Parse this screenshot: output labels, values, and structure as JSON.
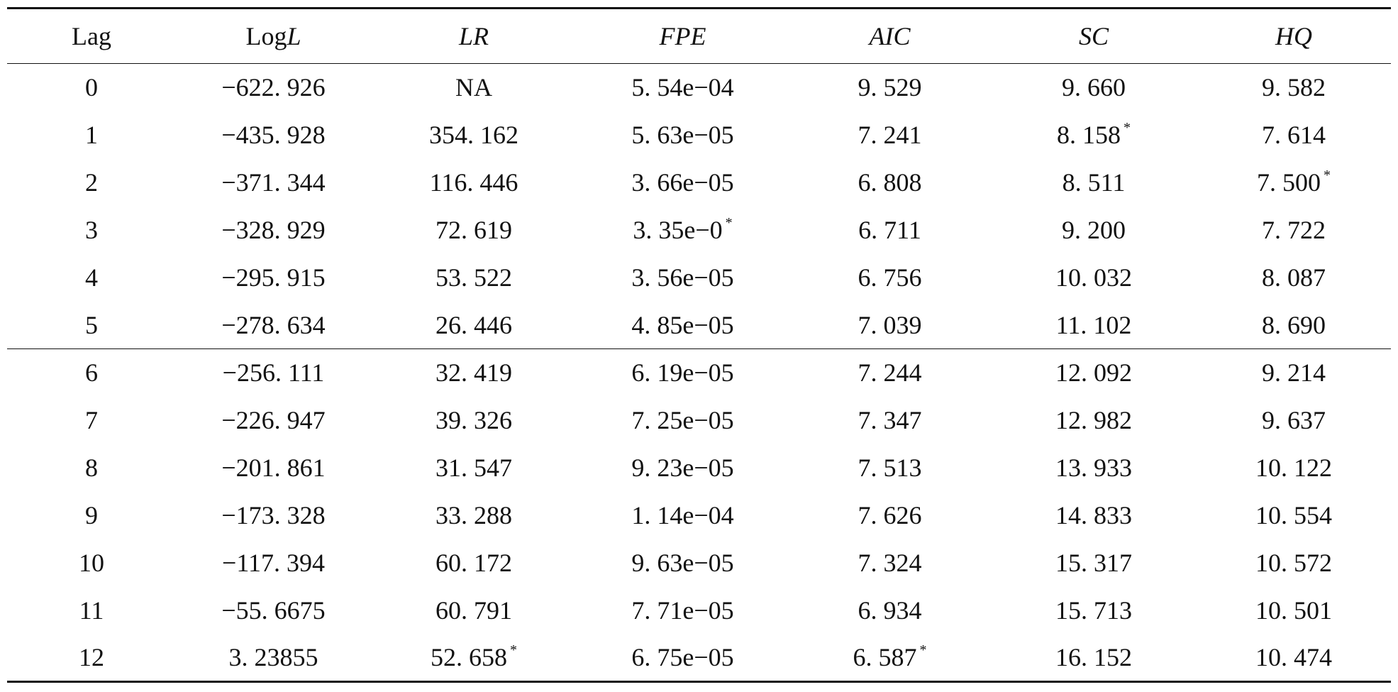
{
  "table": {
    "headers": [
      {
        "pre": "Lag",
        "ital": ""
      },
      {
        "pre": "Log",
        "ital": "L"
      },
      {
        "pre": "",
        "ital": "LR"
      },
      {
        "pre": "",
        "ital": "FPE"
      },
      {
        "pre": "",
        "ital": "AIC"
      },
      {
        "pre": "",
        "ital": "SC"
      },
      {
        "pre": "",
        "ital": "HQ"
      }
    ],
    "rows": [
      {
        "lag": "0",
        "logl": "−622. 926",
        "lr": "NA",
        "fpe": "5. 54e−04",
        "aic": "9. 529",
        "sc": "9. 660",
        "hq": "9. 582"
      },
      {
        "lag": "1",
        "logl": "−435. 928",
        "lr": "354. 162",
        "fpe": "5. 63e−05",
        "aic": "7. 241",
        "sc": "8. 158",
        "hq": "7. 614"
      },
      {
        "lag": "2",
        "logl": "−371. 344",
        "lr": "116. 446",
        "fpe": "3. 66e−05",
        "aic": "6. 808",
        "sc": "8. 511",
        "hq": "7. 500"
      },
      {
        "lag": "3",
        "logl": "−328. 929",
        "lr": "72. 619",
        "fpe": "3. 35e−0",
        "aic": "6. 711",
        "sc": "9. 200",
        "hq": "7. 722"
      },
      {
        "lag": "4",
        "logl": "−295. 915",
        "lr": "53. 522",
        "fpe": "3. 56e−05",
        "aic": "6. 756",
        "sc": "10. 032",
        "hq": "8. 087"
      },
      {
        "lag": "5",
        "logl": "−278. 634",
        "lr": "26. 446",
        "fpe": "4. 85e−05",
        "aic": "7. 039",
        "sc": "11. 102",
        "hq": "8. 690"
      },
      {
        "lag": "6",
        "logl": "−256. 111",
        "lr": "32. 419",
        "fpe": "6. 19e−05",
        "aic": "7. 244",
        "sc": "12. 092",
        "hq": "9. 214"
      },
      {
        "lag": "7",
        "logl": "−226. 947",
        "lr": "39. 326",
        "fpe": "7. 25e−05",
        "aic": "7. 347",
        "sc": "12. 982",
        "hq": "9. 637"
      },
      {
        "lag": "8",
        "logl": "−201. 861",
        "lr": "31. 547",
        "fpe": "9. 23e−05",
        "aic": "7. 513",
        "sc": "13. 933",
        "hq": "10. 122"
      },
      {
        "lag": "9",
        "logl": "−173. 328",
        "lr": "33. 288",
        "fpe": "1. 14e−04",
        "aic": "7. 626",
        "sc": "14. 833",
        "hq": "10. 554"
      },
      {
        "lag": "10",
        "logl": "−117. 394",
        "lr": "60. 172",
        "fpe": "9. 63e−05",
        "aic": "7. 324",
        "sc": "15. 317",
        "hq": "10. 572"
      },
      {
        "lag": "11",
        "logl": "−55. 6675",
        "lr": "60. 791",
        "fpe": "7. 71e−05",
        "aic": "6. 934",
        "sc": "15. 713",
        "hq": "10. 501"
      },
      {
        "lag": "12",
        "logl": "3. 23855",
        "lr": "52. 658",
        "fpe": "6. 75e−05",
        "aic": "6. 587",
        "sc": "16. 152",
        "hq": "10. 474"
      }
    ],
    "marker": "*"
  }
}
